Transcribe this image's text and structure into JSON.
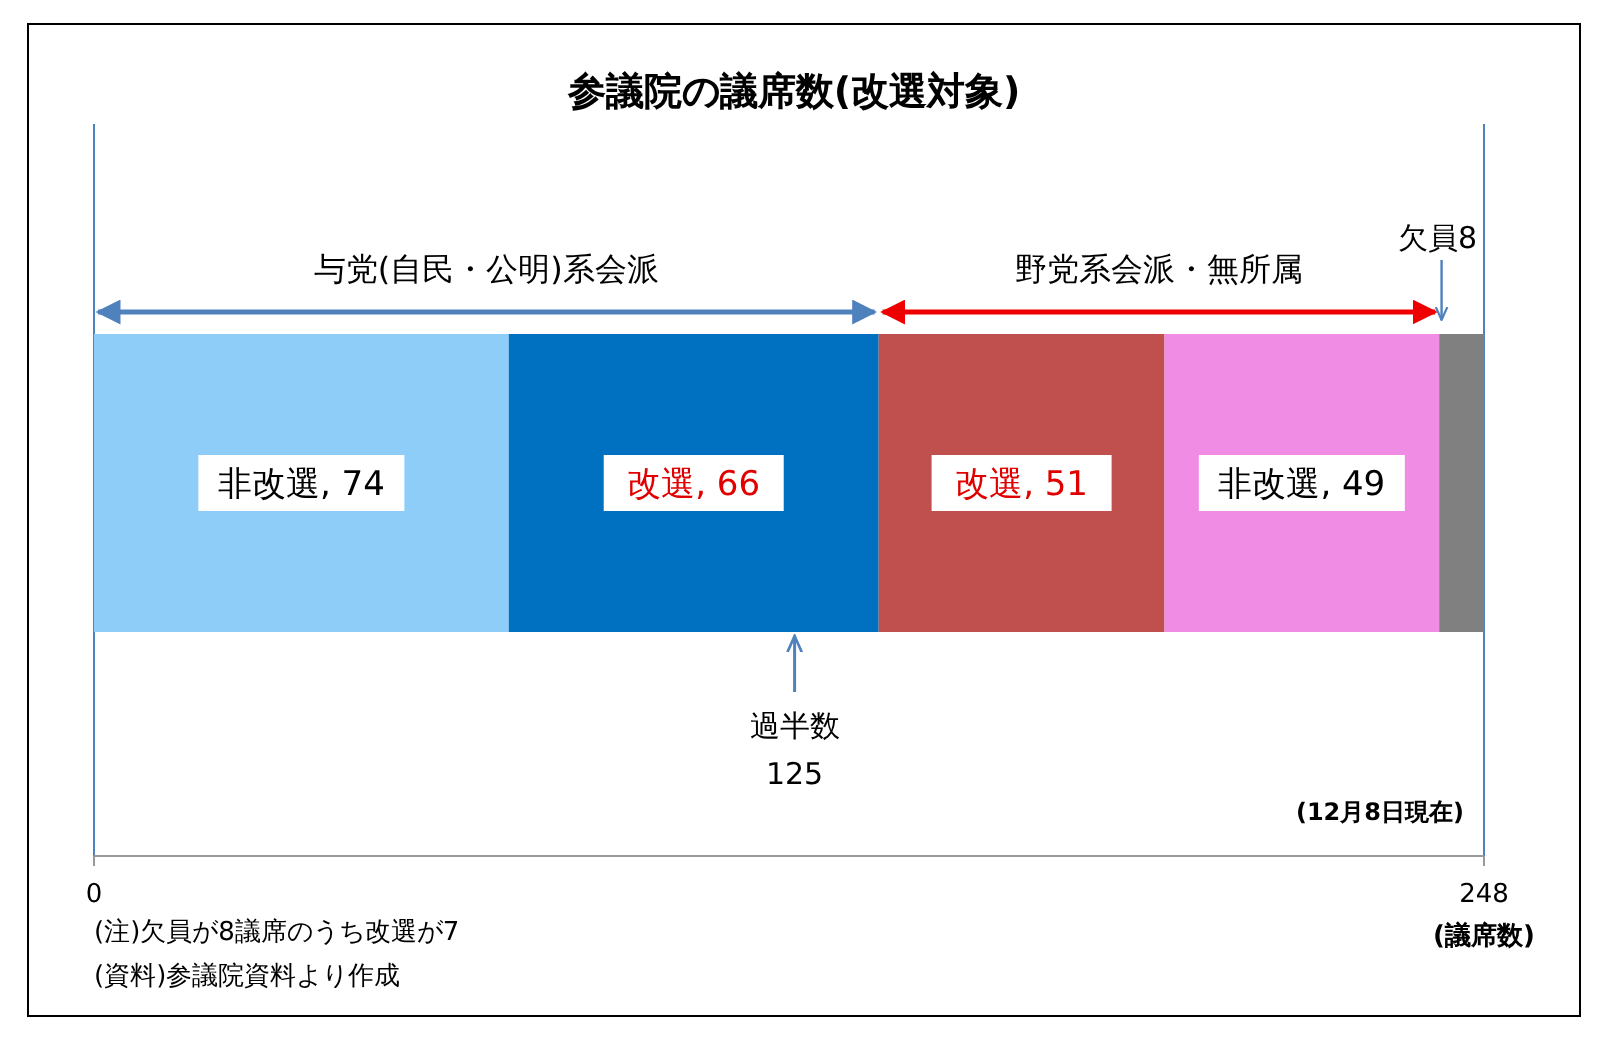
{
  "chart_data": {
    "type": "bar",
    "orientation": "horizontal",
    "stacked": true,
    "title": "参議院の議席数(改選対象)",
    "categories": [
      null
    ],
    "series": [
      {
        "color": "#8fcdf9",
        "values": [
          74
        ],
        "value_labels": [
          "非改選, 74"
        ]
      },
      {
        "color": "#0070c0",
        "values": [
          66
        ],
        "value_labels": [
          "改選, 66"
        ]
      },
      {
        "color": "#c0504d",
        "values": [
          51
        ],
        "value_labels": [
          "改選, 51"
        ]
      },
      {
        "color": "#f08ce4",
        "values": [
          49
        ],
        "value_labels": [
          "非改選, 49"
        ]
      },
      {
        "color": "#808080",
        "values": [
          8
        ],
        "value_labels": [
          null
        ]
      }
    ],
    "xlim": [
      0,
      248
    ],
    "xticks": [
      0,
      248
    ],
    "xlabel": "(議席数)",
    "grid": false,
    "ref_lines": [
      {
        "axis": "x",
        "value": 125,
        "label": "過半数",
        "color": "#4f81bd"
      }
    ],
    "annotations": [
      "与党(自民・公明)系会派",
      "野党系会派・無所属",
      "欠員8",
      "125",
      "(12月8日現在)",
      "(注)欠員が8議席のうち改選が7",
      "(資料)参議院資料より作成"
    ]
  }
}
